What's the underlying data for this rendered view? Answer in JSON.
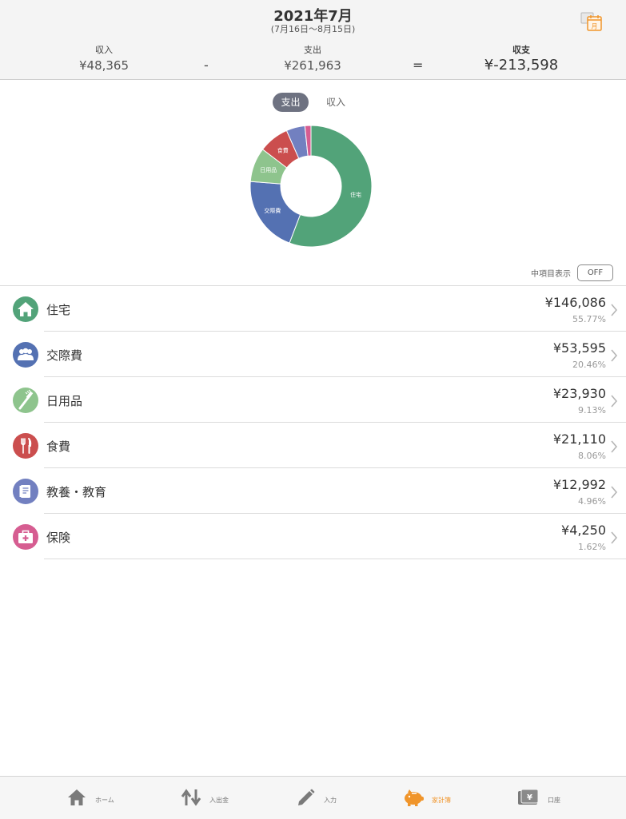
{
  "header": {
    "title": "2021年7月",
    "range": "(7月16日〜8月15日)",
    "calendar_icon": "calendar-month-icon",
    "calendar_label": "月"
  },
  "summary": {
    "income_label": "収入",
    "income_value": "¥48,365",
    "minus": "-",
    "expense_label": "支出",
    "expense_value": "¥261,963",
    "equals": "=",
    "balance_label": "収支",
    "balance_value": "¥-213,598"
  },
  "toggle": {
    "active": "支出",
    "inactive": "収入"
  },
  "chart_data": {
    "type": "pie",
    "categories": [
      "住宅",
      "交際費",
      "日用品",
      "食費",
      "教養・教育",
      "保険"
    ],
    "values": [
      55.77,
      20.46,
      9.13,
      8.06,
      4.96,
      1.62
    ],
    "slice_labels": [
      "住宅",
      "交際費",
      "日用品",
      "食費",
      "",
      ""
    ],
    "colors": [
      "#52a379",
      "#5471b2",
      "#8ec48d",
      "#cb4e4e",
      "#7280c0",
      "#d65d91"
    ],
    "donut": true
  },
  "subitem_toggle": {
    "label": "中項目表示",
    "value": "OFF"
  },
  "categories": [
    {
      "name": "住宅",
      "amount": "¥146,086",
      "percent": "55.77%",
      "color": "#52a379",
      "icon": "house-icon"
    },
    {
      "name": "交際費",
      "amount": "¥53,595",
      "percent": "20.46%",
      "color": "#5471b2",
      "icon": "people-icon"
    },
    {
      "name": "日用品",
      "amount": "¥23,930",
      "percent": "9.13%",
      "color": "#8ec48d",
      "icon": "toothbrush-icon"
    },
    {
      "name": "食費",
      "amount": "¥21,110",
      "percent": "8.06%",
      "color": "#cb4e4e",
      "icon": "fork-knife-icon"
    },
    {
      "name": "教養・教育",
      "amount": "¥12,992",
      "percent": "4.96%",
      "color": "#7280c0",
      "icon": "book-icon"
    },
    {
      "name": "保険",
      "amount": "¥4,250",
      "percent": "1.62%",
      "color": "#d65d91",
      "icon": "first-aid-icon"
    }
  ],
  "tabs": [
    {
      "label": "ホーム",
      "icon": "home-icon",
      "active": false
    },
    {
      "label": "入出金",
      "icon": "transfer-arrows-icon",
      "active": false
    },
    {
      "label": "入力",
      "icon": "pencil-icon",
      "active": false
    },
    {
      "label": "家計簿",
      "icon": "piggy-bank-icon",
      "active": true
    },
    {
      "label": "口座",
      "icon": "wallet-yen-icon",
      "active": false
    }
  ],
  "theme": {
    "active_tab_color": "#f0952b",
    "inactive_tab_color": "#777777"
  }
}
